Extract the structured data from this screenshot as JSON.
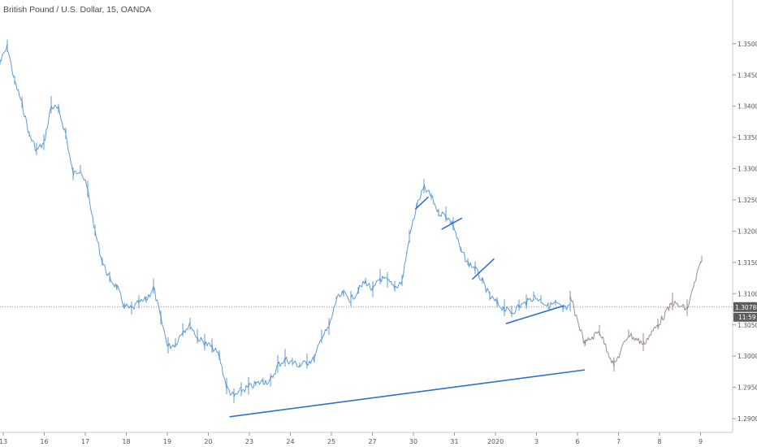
{
  "chart_data": {
    "type": "line",
    "title": "British Pound / U.S. Dollar, 15, OANDA",
    "y_ticks": [
      "1.35000",
      "1.34500",
      "1.34000",
      "1.33500",
      "1.33000",
      "1.32500",
      "1.32000",
      "1.31500",
      "1.31000",
      "1.30500",
      "1.30000",
      "1.29500",
      "1.29000"
    ],
    "ylim": [
      1.2878,
      1.357
    ],
    "x_ticks": [
      "13",
      "16",
      "17",
      "18",
      "19",
      "20",
      "23",
      "24",
      "25",
      "27",
      "30",
      "31",
      "2020",
      "3",
      "6",
      "7",
      "8",
      "9"
    ],
    "last_price": "1.30786",
    "countdown": "11:59",
    "grid": false,
    "series": [
      {
        "role": "historical",
        "color": "#5b9bd5",
        "x": [
          0,
          1,
          2,
          3,
          4,
          5,
          6,
          7,
          8,
          9,
          10,
          11,
          12,
          13,
          14,
          15,
          16,
          17,
          18,
          19,
          20,
          21,
          22,
          23,
          24,
          25,
          26,
          27,
          28,
          29,
          30,
          31,
          32,
          33,
          34,
          35,
          36,
          37,
          38,
          39,
          40,
          41,
          42,
          43,
          44,
          45,
          46,
          47,
          48,
          49,
          50,
          51,
          52,
          53,
          54,
          55,
          56,
          57,
          58,
          59,
          60,
          61,
          62,
          63,
          64,
          65,
          66,
          67,
          68,
          69,
          70,
          71,
          72,
          73,
          74,
          75,
          76,
          77,
          78
        ],
        "y": [
          1.347,
          1.3495,
          1.344,
          1.3405,
          1.3355,
          1.333,
          1.334,
          1.34,
          1.3395,
          1.3355,
          1.329,
          1.33,
          1.3265,
          1.32,
          1.315,
          1.3125,
          1.311,
          1.308,
          1.3075,
          1.3085,
          1.309,
          1.311,
          1.306,
          1.3015,
          1.302,
          1.304,
          1.305,
          1.303,
          1.302,
          1.3015,
          1.3,
          1.295,
          1.2935,
          1.2945,
          1.295,
          1.2955,
          1.296,
          1.296,
          1.2985,
          1.2995,
          1.299,
          1.2985,
          1.299,
          1.2995,
          1.303,
          1.3045,
          1.309,
          1.31,
          1.309,
          1.3105,
          1.312,
          1.3105,
          1.3125,
          1.312,
          1.311,
          1.312,
          1.319,
          1.324,
          1.327,
          1.3255,
          1.323,
          1.3225,
          1.321,
          1.317,
          1.315,
          1.314,
          1.312,
          1.3095,
          1.3085,
          1.3075,
          1.307,
          1.308,
          1.3085,
          1.3095,
          1.309,
          1.308,
          1.3085,
          1.3075,
          1.3078
        ]
      },
      {
        "role": "projection",
        "color": "#9b8a8a",
        "x": [
          78,
          80,
          82,
          84,
          86,
          88,
          90,
          92,
          94,
          96
        ],
        "y": [
          1.3095,
          1.302,
          1.304,
          1.2985,
          1.3035,
          1.302,
          1.305,
          1.3085,
          1.3075,
          1.3155
        ]
      }
    ],
    "trendlines": [
      {
        "from": [
          31.4,
          1.2903
        ],
        "to": [
          80.0,
          1.2978
        ]
      },
      {
        "from": [
          69.2,
          1.3052
        ],
        "to": [
          77.2,
          1.3081
        ]
      },
      {
        "from": [
          64.6,
          1.3123
        ],
        "to": [
          67.6,
          1.3156
        ]
      },
      {
        "from": [
          60.4,
          1.3203
        ],
        "to": [
          63.2,
          1.3221
        ]
      },
      {
        "from": [
          56.8,
          1.3235
        ],
        "to": [
          58.6,
          1.3255
        ]
      }
    ]
  }
}
